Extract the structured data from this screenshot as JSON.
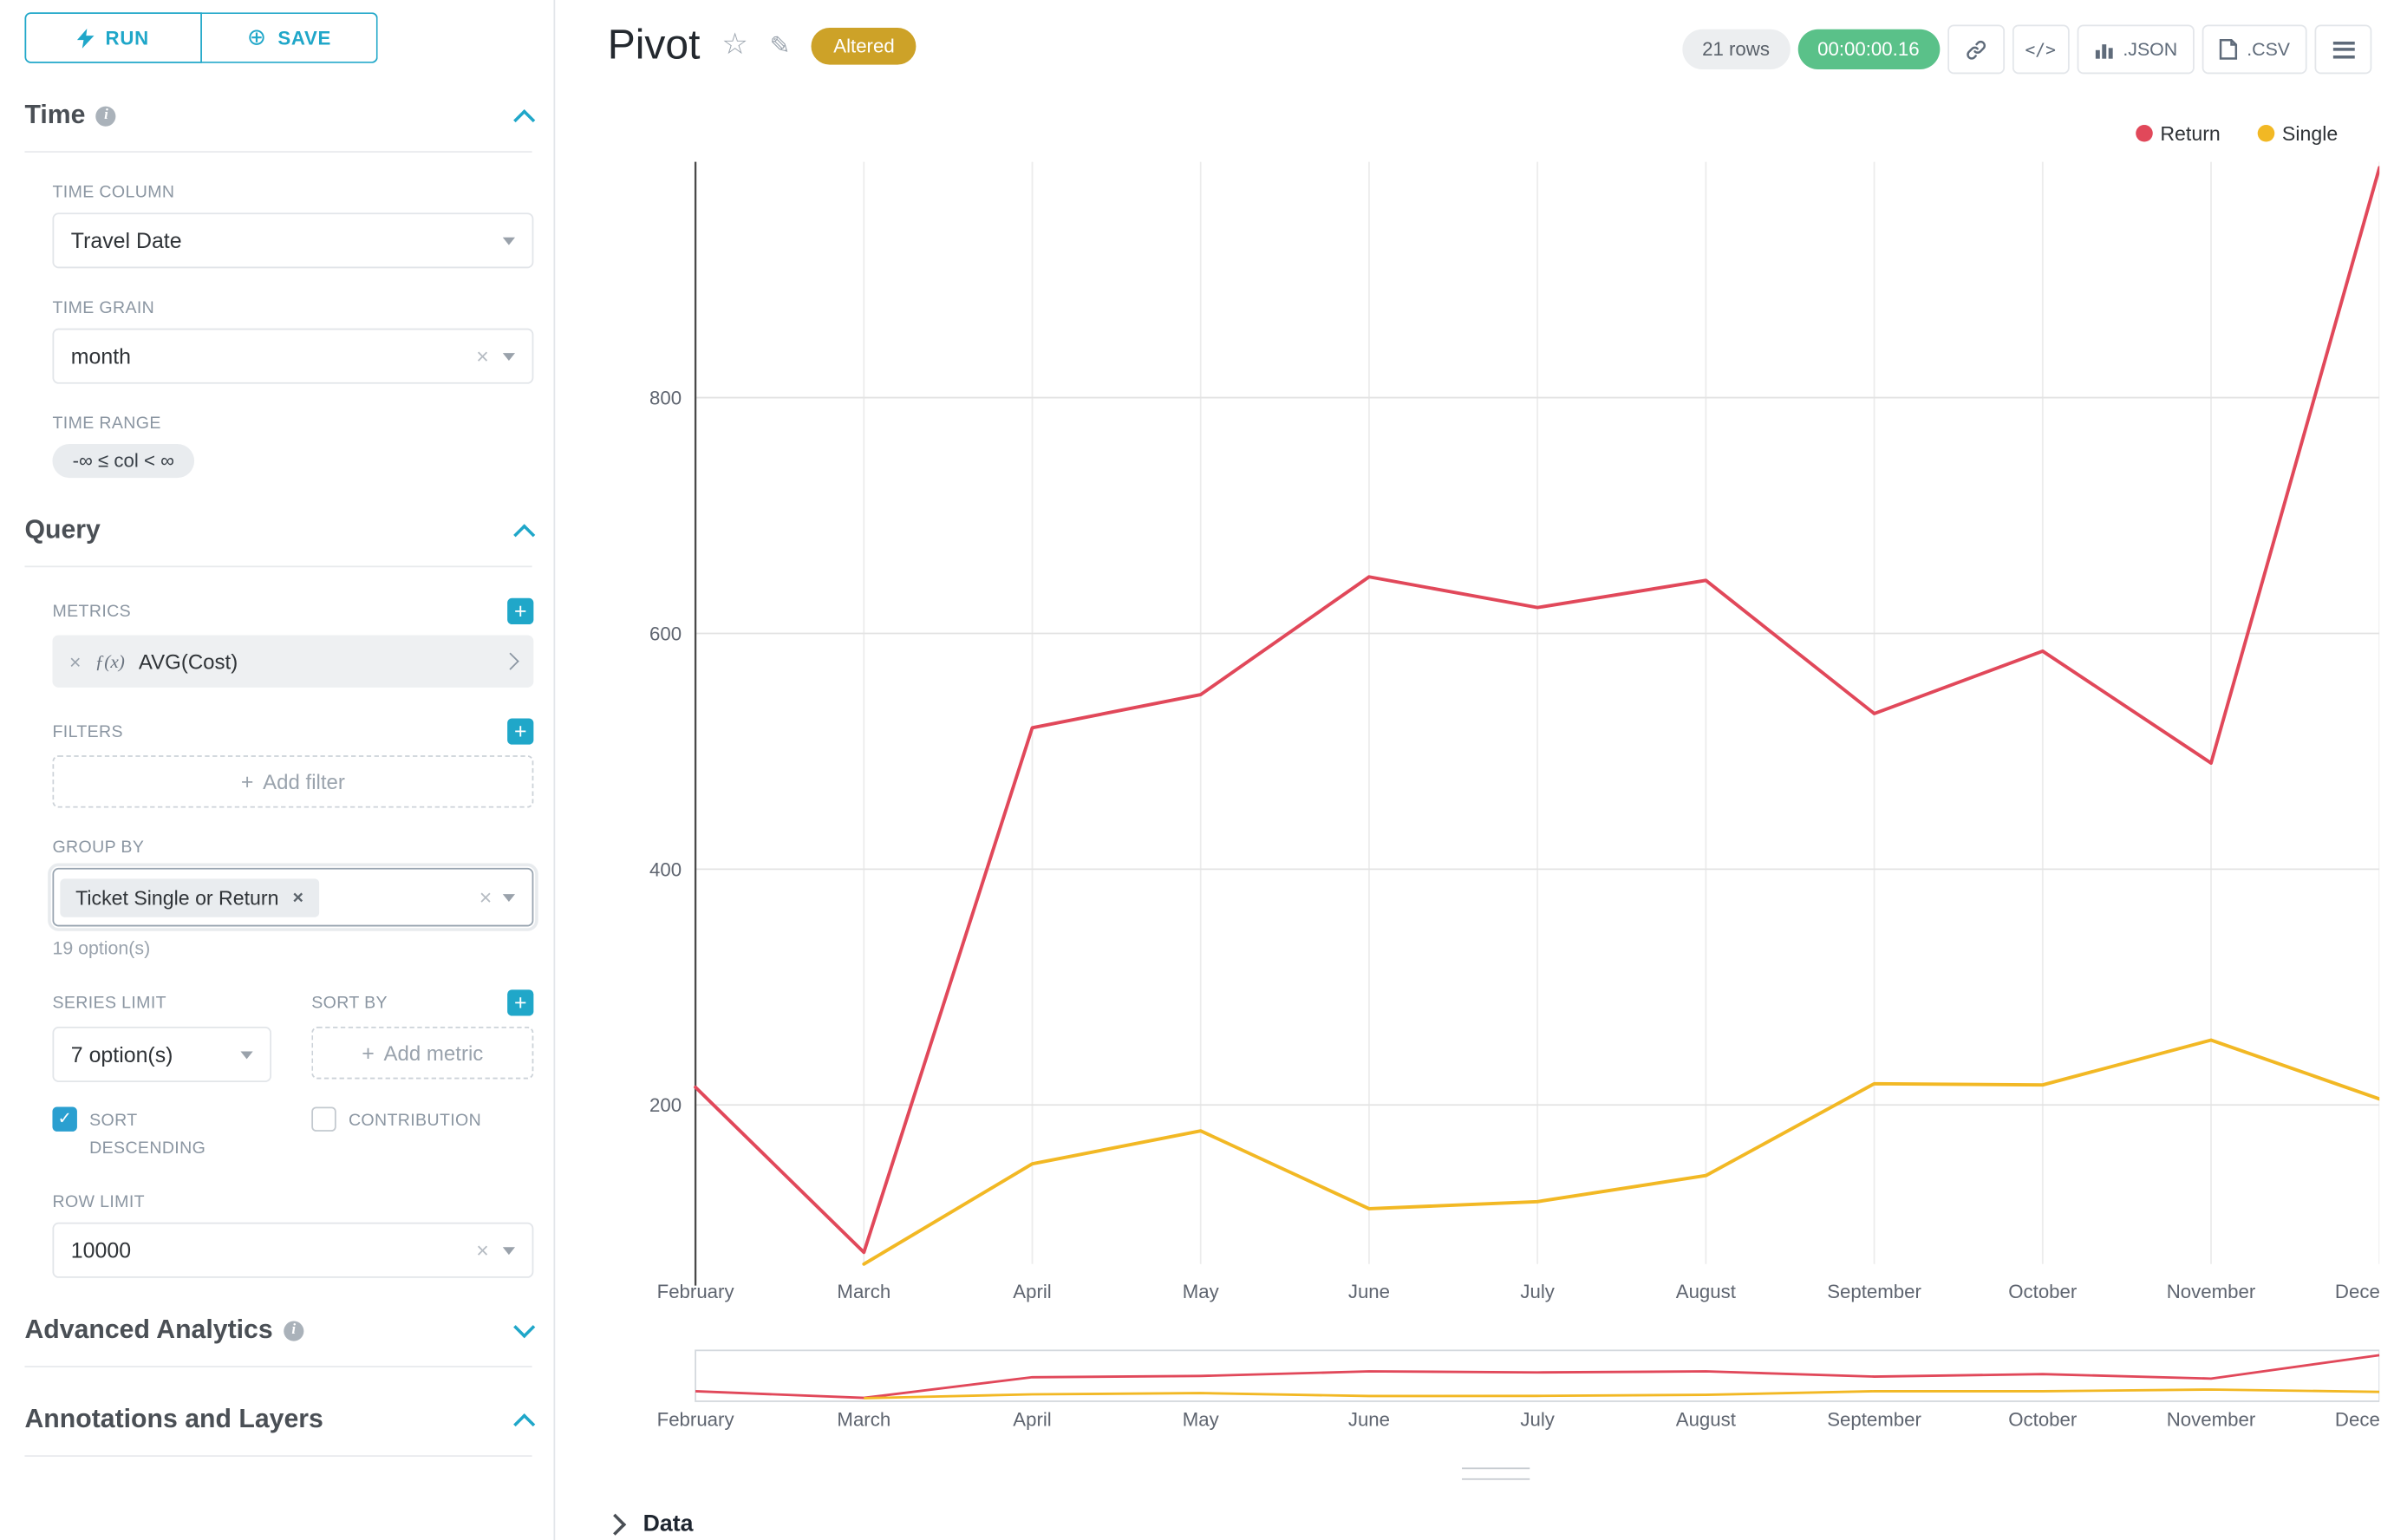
{
  "icons": {
    "plus": "+",
    "plus_circle": "⊕",
    "close": "×",
    "star": "☆",
    "edit": "✎",
    "check": "✓"
  },
  "sidebar": {
    "run_button": "RUN",
    "save_button": "SAVE",
    "time": {
      "title": "Time",
      "time_column_label": "TIME COLUMN",
      "time_column_value": "Travel Date",
      "time_grain_label": "TIME GRAIN",
      "time_grain_value": "month",
      "time_range_label": "TIME RANGE",
      "time_range_value": "-∞ ≤ col < ∞"
    },
    "query": {
      "title": "Query",
      "metrics_label": "METRICS",
      "metric_fx": "ƒ(x)",
      "metric_name": "AVG(Cost)",
      "filters_label": "FILTERS",
      "add_filter_label": "Add filter",
      "group_by_label": "GROUP BY",
      "group_by_value": "Ticket Single or Return",
      "options_hint": "19 option(s)",
      "series_limit_label": "SERIES LIMIT",
      "series_limit_value": "7 option(s)",
      "sort_by_label": "SORT BY",
      "add_metric_label": "Add metric",
      "sort_descending_label": "SORT DESCENDING",
      "contribution_label": "CONTRIBUTION",
      "row_limit_label": "ROW LIMIT",
      "row_limit_value": "10000"
    },
    "advanced_title": "Advanced Analytics",
    "annotations_title": "Annotations and Layers"
  },
  "header": {
    "title": "Pivot",
    "altered_badge": "Altered",
    "rows_count": "21 rows",
    "timer": "00:00:00.16",
    "code_button": "</>",
    "json_button": ".JSON",
    "csv_button": ".CSV"
  },
  "chart_data": {
    "type": "line",
    "title": "",
    "xlabel": "",
    "ylabel": "",
    "grid": true,
    "legend_position": "top-right",
    "categories": [
      "February",
      "March",
      "April",
      "May",
      "June",
      "July",
      "August",
      "September",
      "October",
      "November",
      "December"
    ],
    "series": [
      {
        "name": "Return",
        "color": "#e1485a",
        "values": [
          215,
          75,
          520,
          548,
          648,
          622,
          645,
          532,
          585,
          490,
          995
        ]
      },
      {
        "name": "Single",
        "color": "#f2b824",
        "values": [
          null,
          65,
          150,
          178,
          112,
          118,
          140,
          218,
          217,
          255,
          205
        ]
      }
    ],
    "ylim": [
      65,
      1000
    ],
    "yticks": [
      200,
      400,
      600,
      800
    ]
  },
  "footer": {
    "data_label": "Data"
  }
}
